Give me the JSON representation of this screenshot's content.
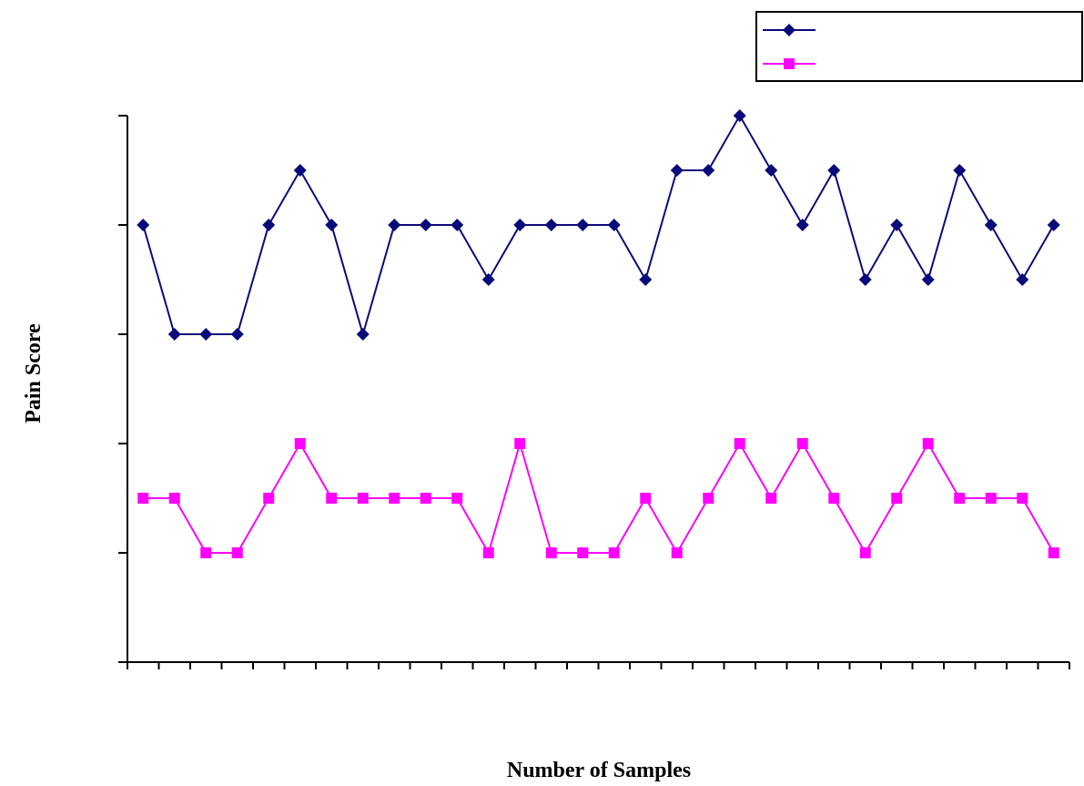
{
  "chart_data": {
    "type": "line",
    "title": "",
    "xlabel": "Number of Samples",
    "ylabel": "Pain Score",
    "x": [
      1,
      2,
      3,
      4,
      5,
      6,
      7,
      8,
      9,
      10,
      11,
      12,
      13,
      14,
      15,
      16,
      17,
      18,
      19,
      20,
      21,
      22,
      23,
      24,
      25,
      26,
      27,
      28,
      29,
      30
    ],
    "ylim": [
      0,
      5
    ],
    "xlim": [
      0.5,
      30.5
    ],
    "grid": false,
    "legend_position": "top-right",
    "series": [
      {
        "marker": "diamond",
        "color": "#0a0a7a",
        "values": [
          4,
          3,
          3,
          3,
          4,
          4.5,
          4,
          3,
          4,
          4,
          4,
          3.5,
          4,
          4,
          4,
          4,
          3.5,
          4.5,
          4.5,
          5,
          4.5,
          4,
          4.5,
          3.5,
          4,
          3.5,
          4.5,
          4,
          3.5,
          4
        ]
      },
      {
        "marker": "square",
        "color": "#ff00ff",
        "values": [
          1.5,
          1.5,
          1,
          1,
          1.5,
          2,
          1.5,
          1.5,
          1.5,
          1.5,
          1.5,
          1,
          2,
          1,
          1,
          1,
          1.5,
          1,
          1.5,
          2,
          1.5,
          2,
          1.5,
          1,
          1.5,
          2,
          1.5,
          1.5,
          1.5,
          1
        ]
      }
    ]
  }
}
